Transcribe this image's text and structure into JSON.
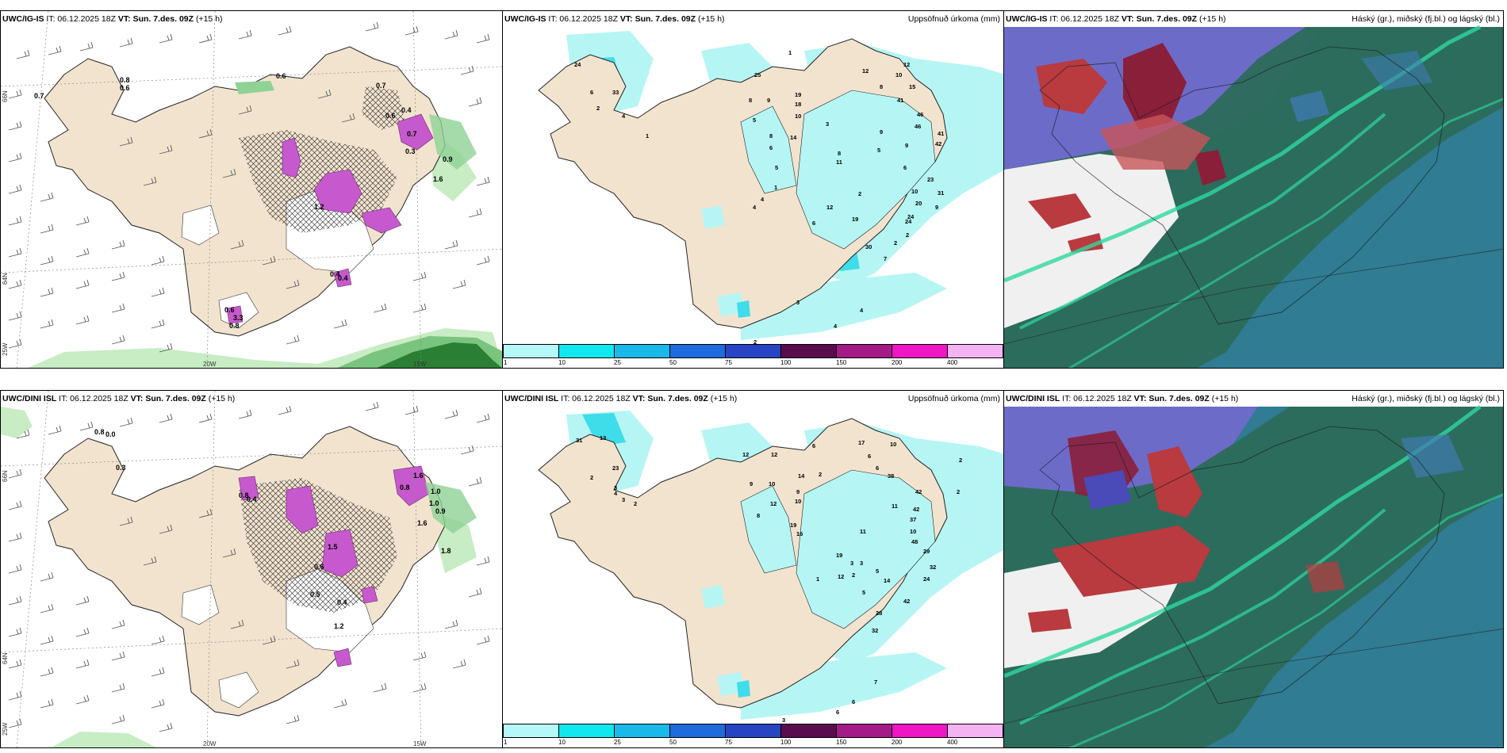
{
  "rows": [
    {
      "model": "UWC/IG-IS",
      "panels": [
        {
          "model_label": "UWC/IG-IS",
          "it_label": "IT: 06.12.2025 18Z",
          "vt_label": "VT: Sun. 7.des. 09Z",
          "lead": "(+15 h)",
          "right_title": ""
        },
        {
          "model_label": "UWC/IG-IS",
          "it_label": "IT: 06.12.2025 18Z",
          "vt_label": "VT: Sun. 7.des. 09Z",
          "lead": "(+15 h)",
          "right_title": "Uppsöfnuð úrkoma (mm)"
        },
        {
          "model_label": "UWC/IG-IS",
          "it_label": "IT: 06.12.2025 18Z",
          "vt_label": "VT: Sun. 7.des. 09Z",
          "lead": "(+15 h)",
          "right_title": "Háský (gr.), miðský (fj.bl.) og lágský (bl.)"
        }
      ],
      "axis_labels": {
        "lat66": "66N",
        "lat64": "64N",
        "lon25": "25W",
        "lon20": "20W",
        "lon15": "15W"
      },
      "precip_values": [
        "24",
        "33",
        "6",
        "2",
        "4",
        "1",
        "1",
        "25",
        "8",
        "9",
        "19",
        "18",
        "10",
        "5",
        "8",
        "6",
        "14",
        "5",
        "3",
        "12",
        "8",
        "10",
        "12",
        "15",
        "41",
        "46",
        "46",
        "9",
        "41",
        "42",
        "9",
        "5",
        "6",
        "11",
        "8",
        "23",
        "31",
        "10",
        "2",
        "20",
        "24",
        "9",
        "12",
        "6",
        "19",
        "24",
        "2",
        "4",
        "4",
        "1",
        "2",
        "30",
        "7",
        "3",
        "4",
        "4",
        "2"
      ],
      "wind_values": [
        "0.7",
        "0.6",
        "0.8",
        "0.6",
        "0.7",
        "0.6",
        "0.4",
        "0.7",
        "0.3",
        "0.9",
        "0.4",
        "0.6",
        "1.2",
        "3.3",
        "0.8",
        "1.6",
        "0.4"
      ]
    },
    {
      "model": "UWC/DINI ISL",
      "panels": [
        {
          "model_label": "UWC/DINI ISL",
          "it_label": "IT: 06.12.2025 18Z",
          "vt_label": "VT: Sun. 7.des. 09Z",
          "lead": "(+15 h)",
          "right_title": ""
        },
        {
          "model_label": "UWC/DINI ISL",
          "it_label": "IT: 06.12.2025 18Z",
          "vt_label": "VT: Sun. 7.des. 09Z",
          "lead": "(+15 h)",
          "right_title": "Uppsöfnuð úrkoma (mm)"
        },
        {
          "model_label": "UWC/DINI ISL",
          "it_label": "IT: 06.12.2025 18Z",
          "vt_label": "VT: Sun. 7.des. 09Z",
          "lead": "(+15 h)",
          "right_title": "Háský (gr.), miðský (fj.bl.) og lágský (bl.)"
        }
      ],
      "axis_labels": {
        "lat66": "66N",
        "lat64": "64N",
        "lon25": "25W",
        "lon20": "20W",
        "lon15": "15W"
      },
      "precip_values": [
        "31",
        "13",
        "23",
        "2",
        "3",
        "3",
        "2",
        "4",
        "6",
        "12",
        "12",
        "14",
        "2",
        "9",
        "10",
        "9",
        "12",
        "10",
        "8",
        "19",
        "16",
        "17",
        "10",
        "6",
        "38",
        "2",
        "2",
        "6",
        "42",
        "42",
        "37",
        "10",
        "11",
        "48",
        "29",
        "32",
        "24",
        "11",
        "3",
        "3",
        "12",
        "5",
        "14",
        "28",
        "42",
        "1",
        "32",
        "19",
        "2",
        "5",
        "7",
        "6",
        "6",
        "3"
      ],
      "wind_values": [
        "0.8",
        "0.0",
        "0.3",
        "0.8",
        "1.0",
        "1.6",
        "0.8",
        "0.4",
        "0.6",
        "0.5",
        "1.5",
        "0.4",
        "1.8",
        "1.0",
        "0.9",
        "1.6",
        "1.2"
      ]
    }
  ],
  "colorbar": {
    "ticks": [
      "1",
      "10",
      "25",
      "50",
      "75",
      "100",
      "150",
      "200",
      "400"
    ],
    "colors": [
      "#b4f8f8",
      "#10e7ee",
      "#1bb8ea",
      "#1d6bdc",
      "#2744c2",
      "#5a0d4d",
      "#a41a86",
      "#ee16c5",
      "#f4b4f4"
    ]
  },
  "colors": {
    "land": "#f2e3cf",
    "precip_light": "#b5f6f5",
    "precip_mid": "#3fdcea",
    "magenta": "#c659cd",
    "green_light": "#c8ecc4",
    "green_dark": "#2b7f35",
    "cloud_high": "#6d6bc8",
    "cloud_mid": "#2c6b58",
    "cloud_low": "#2f7c93",
    "cloud_red": "#b93a3f"
  }
}
